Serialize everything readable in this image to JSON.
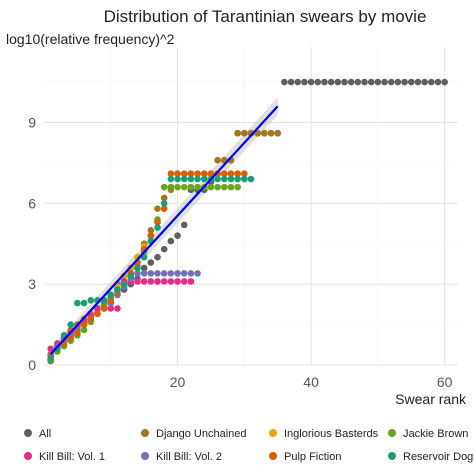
{
  "chart_data": {
    "type": "scatter",
    "title": "Distribution of Tarantinian swears by movie",
    "xlabel": "Swear rank",
    "ylabel": "log10(relative frequency)^2",
    "xlim": [
      0,
      62
    ],
    "ylim": [
      0,
      11.8
    ],
    "x_ticks": [
      20,
      40,
      60
    ],
    "y_ticks": [
      0,
      3,
      6,
      9
    ],
    "grid": true,
    "legend_position": "bottom",
    "series": [
      {
        "name": "All",
        "color": "#5f5f5f",
        "x": [
          1,
          2,
          3,
          4,
          5,
          6,
          7,
          8,
          9,
          10,
          11,
          12,
          13,
          14,
          15,
          16,
          17,
          18,
          19,
          20,
          21,
          22,
          23,
          24,
          25,
          26,
          27,
          28,
          29,
          30,
          31,
          32,
          33,
          34,
          35,
          36,
          37,
          38,
          39,
          40,
          41,
          42,
          43,
          44,
          45,
          46,
          47,
          48,
          49,
          50,
          51,
          52,
          53,
          54,
          55,
          56,
          57,
          58,
          59,
          60
        ],
        "y": [
          0.15,
          0.6,
          0.9,
          1.1,
          1.3,
          1.5,
          1.7,
          1.9,
          2.1,
          2.3,
          2.6,
          2.8,
          3.0,
          3.2,
          3.6,
          3.8,
          4.0,
          4.3,
          4.6,
          4.8,
          5.2,
          6.5,
          6.5,
          6.5,
          6.8,
          7.1,
          7.6,
          7.6,
          8.6,
          8.6,
          8.6,
          8.6,
          8.6,
          8.6,
          8.6,
          10.5,
          10.5,
          10.5,
          10.5,
          10.5,
          10.5,
          10.5,
          10.5,
          10.5,
          10.5,
          10.5,
          10.5,
          10.5,
          10.5,
          10.5,
          10.5,
          10.5,
          10.5,
          10.5,
          10.5,
          10.5,
          10.5,
          10.5,
          10.5,
          10.5
        ]
      },
      {
        "name": "Django Unchained",
        "color": "#a6761d",
        "x": [
          1,
          2,
          3,
          4,
          5,
          6,
          7,
          8,
          9,
          10,
          11,
          12,
          13,
          14,
          15,
          16,
          17,
          18,
          19,
          20,
          21,
          22,
          23,
          24,
          25,
          26,
          27,
          28,
          29,
          30,
          31,
          32,
          33,
          34,
          35
        ],
        "y": [
          0.25,
          0.7,
          1.0,
          1.3,
          1.5,
          1.7,
          1.9,
          2.1,
          2.3,
          2.6,
          3.0,
          3.3,
          3.6,
          4.0,
          4.5,
          5.0,
          5.8,
          6.2,
          6.5,
          7.1,
          7.1,
          7.1,
          7.1,
          7.1,
          7.1,
          7.6,
          7.6,
          7.6,
          8.6,
          8.6,
          8.6,
          8.6,
          8.6,
          8.6,
          8.6
        ]
      },
      {
        "name": "Inglorious Basterds",
        "color": "#e6ab02",
        "x": [
          1,
          2,
          3,
          4,
          5,
          6,
          7,
          8,
          9,
          10,
          11,
          12,
          13,
          14,
          15,
          16,
          17,
          18,
          19,
          20,
          21,
          22,
          23,
          24,
          25,
          26,
          27,
          28,
          29,
          30
        ],
        "y": [
          0.3,
          0.6,
          0.9,
          1.2,
          1.4,
          1.6,
          1.8,
          2.0,
          2.2,
          2.6,
          2.9,
          3.3,
          3.6,
          4.0,
          4.4,
          4.8,
          5.3,
          5.8,
          6.6,
          7.1,
          7.1,
          7.1,
          7.1,
          7.1,
          7.1,
          7.1,
          7.1,
          7.1,
          7.1,
          7.1
        ]
      },
      {
        "name": "Jackie Brown",
        "color": "#66a61e",
        "x": [
          1,
          2,
          3,
          4,
          5,
          6,
          7,
          8,
          9,
          10,
          11,
          12,
          13,
          14,
          15,
          16,
          17,
          18,
          19,
          20,
          21,
          22,
          23,
          24,
          25,
          26,
          27,
          28,
          29
        ],
        "y": [
          0.2,
          0.5,
          0.7,
          0.9,
          1.1,
          1.3,
          1.6,
          1.9,
          2.2,
          2.5,
          2.8,
          3.1,
          3.4,
          3.7,
          4.2,
          4.8,
          5.4,
          6.6,
          6.6,
          6.6,
          6.6,
          6.6,
          6.6,
          6.6,
          6.6,
          6.6,
          6.6,
          6.6,
          6.6
        ]
      },
      {
        "name": "Kill Bill: Vol. 1",
        "color": "#e7298a",
        "x": [
          1,
          2,
          3,
          4,
          5,
          6,
          7,
          8,
          9,
          10,
          11,
          12,
          13,
          14,
          15,
          16,
          17,
          18,
          19,
          20,
          21,
          22
        ],
        "y": [
          0.6,
          0.8,
          1.0,
          1.2,
          1.4,
          1.6,
          1.8,
          2.1,
          2.1,
          2.1,
          2.1,
          3.1,
          3.1,
          3.1,
          3.1,
          3.1,
          3.1,
          3.1,
          3.1,
          3.1,
          3.1,
          3.1
        ]
      },
      {
        "name": "Kill Bill: Vol. 2",
        "color": "#7570b3",
        "x": [
          1,
          2,
          3,
          4,
          5,
          6,
          7,
          8,
          9,
          10,
          11,
          12,
          13,
          14,
          15,
          16,
          17,
          18,
          19,
          20,
          21,
          22,
          23
        ],
        "y": [
          0.4,
          0.7,
          0.9,
          1.1,
          1.3,
          1.5,
          1.7,
          1.9,
          2.1,
          2.3,
          2.6,
          2.9,
          3.2,
          3.4,
          3.4,
          3.4,
          3.4,
          3.4,
          3.4,
          3.4,
          3.4,
          3.4,
          3.4
        ]
      },
      {
        "name": "Pulp Fiction",
        "color": "#d95f02",
        "x": [
          1,
          2,
          3,
          4,
          5,
          6,
          7,
          8,
          9,
          10,
          11,
          12,
          13,
          14,
          15,
          16,
          17,
          18,
          19,
          20,
          21,
          22,
          23,
          24,
          25,
          26,
          27,
          28,
          29,
          30
        ],
        "y": [
          0.35,
          0.6,
          0.8,
          1.0,
          1.2,
          1.5,
          1.7,
          1.9,
          2.1,
          2.4,
          2.7,
          3.0,
          3.4,
          3.8,
          4.3,
          4.8,
          5.3,
          5.8,
          7.1,
          7.1,
          7.1,
          7.1,
          7.1,
          7.1,
          7.1,
          7.1,
          7.1,
          7.1,
          7.1,
          7.1
        ]
      },
      {
        "name": "Reservoir Dogs",
        "color": "#1b9e77",
        "x": [
          1,
          2,
          3,
          4,
          5,
          6,
          7,
          8,
          9,
          10,
          11,
          12,
          13,
          14,
          15,
          16,
          17,
          18,
          19,
          20,
          21,
          22,
          23,
          24,
          25,
          26,
          27,
          28,
          29,
          30,
          31
        ],
        "y": [
          0.25,
          0.6,
          1.1,
          1.5,
          2.3,
          2.3,
          2.4,
          2.4,
          2.4,
          2.6,
          2.8,
          3.0,
          3.3,
          3.6,
          4.0,
          4.6,
          5.1,
          6.0,
          6.9,
          6.9,
          6.9,
          6.9,
          6.9,
          6.9,
          6.9,
          6.9,
          6.9,
          6.9,
          6.9,
          6.9,
          6.9
        ]
      }
    ],
    "trend_line": {
      "color": "#0000ff",
      "x": [
        1,
        35
      ],
      "y": [
        0.4,
        9.6
      ],
      "band_color": "#bbbbbb"
    }
  }
}
